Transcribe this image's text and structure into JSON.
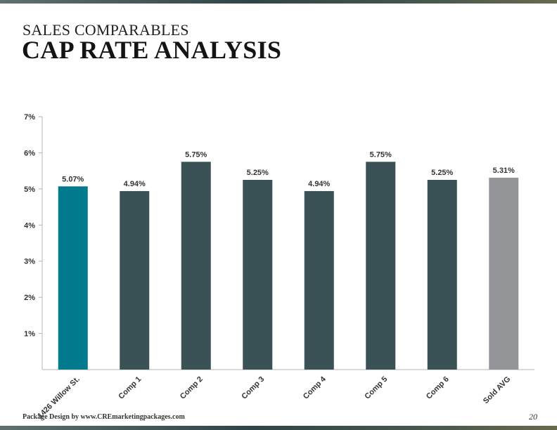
{
  "header": {
    "subtitle": "SALES COMPARABLES",
    "title": "CAP RATE ANALYSIS"
  },
  "footer": {
    "credit": "Package Design by www.CREmarketingpackages.com",
    "page_number": "20"
  },
  "chart_data": {
    "type": "bar",
    "title": "",
    "xlabel": "",
    "ylabel": "",
    "categories": [
      "1426 Willow St.",
      "Comp 1",
      "Comp 2",
      "Comp 3",
      "Comp 4",
      "Comp 5",
      "Comp 6",
      "Sold AVG"
    ],
    "values": [
      5.07,
      4.94,
      5.75,
      5.25,
      4.94,
      5.75,
      5.25,
      5.31
    ],
    "value_labels": [
      "5.07%",
      "4.94%",
      "5.75%",
      "5.25%",
      "4.94%",
      "5.75%",
      "5.25%",
      "5.31%"
    ],
    "ylim": [
      0,
      7
    ],
    "y_ticks": [
      1,
      2,
      3,
      4,
      5,
      6,
      7
    ],
    "y_tick_labels": [
      "1%",
      "2%",
      "3%",
      "4%",
      "5%",
      "6%",
      "7%"
    ],
    "grid": false,
    "legend": "none",
    "colors": [
      "#007a8c",
      "#3a5156",
      "#3a5156",
      "#3a5156",
      "#3a5156",
      "#3a5156",
      "#3a5156",
      "#939598"
    ]
  }
}
